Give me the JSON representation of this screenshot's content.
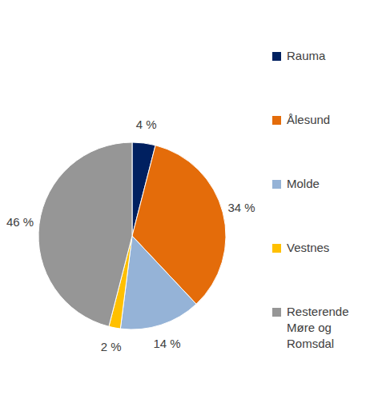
{
  "chart_data": {
    "type": "pie",
    "categories": [
      "Rauma",
      "Ålesund",
      "Molde",
      "Vestnes",
      "Resterende Møre og Romsdal"
    ],
    "values": [
      4,
      34,
      14,
      2,
      46
    ],
    "value_labels": [
      "4 %",
      "34 %",
      "14 %",
      "2 %",
      "46 %"
    ],
    "colors": [
      "#002060",
      "#E46C0A",
      "#95B3D7",
      "#FFC000",
      "#969696"
    ],
    "data_labels": true,
    "legend": "right"
  }
}
